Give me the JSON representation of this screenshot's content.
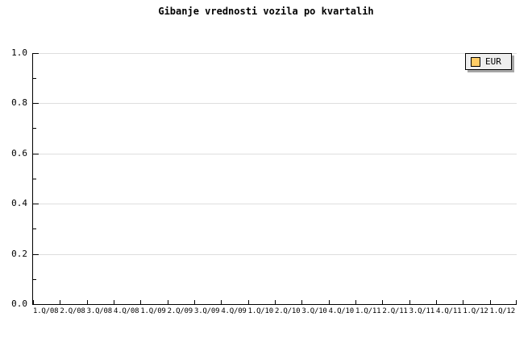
{
  "chart_data": {
    "type": "line",
    "title": "Gibanje vrednosti vozila po kvartalih",
    "categories": [
      "1.Q/08",
      "2.Q/08",
      "3.Q/08",
      "4.Q/08",
      "1.Q/09",
      "2.Q/09",
      "3.Q/09",
      "4.Q/09",
      "1.Q/10",
      "2.Q/10",
      "3.Q/10",
      "4.Q/10",
      "1.Q/11",
      "2.Q/11",
      "3.Q/11",
      "4.Q/11",
      "1.Q/12",
      "1.Q/12"
    ],
    "series": [
      {
        "name": "EUR",
        "color": "#FFCC66",
        "values": []
      }
    ],
    "ylim": [
      0.0,
      1.0
    ],
    "ytick_labels": [
      "1.0",
      "0.8",
      "0.6",
      "0.4",
      "0.2",
      "0.0"
    ],
    "y_major_step": 0.2,
    "y_minor_step": 0.1,
    "grid": true,
    "legend_position": "top-right"
  },
  "colors": {
    "background": "#ffffff",
    "axis": "#000000",
    "gridline": "#dedede",
    "legend_background": "#efefef",
    "legend_shadow": "#a6a6a6",
    "series_eur": "#FFCC66",
    "text": "#000000"
  }
}
